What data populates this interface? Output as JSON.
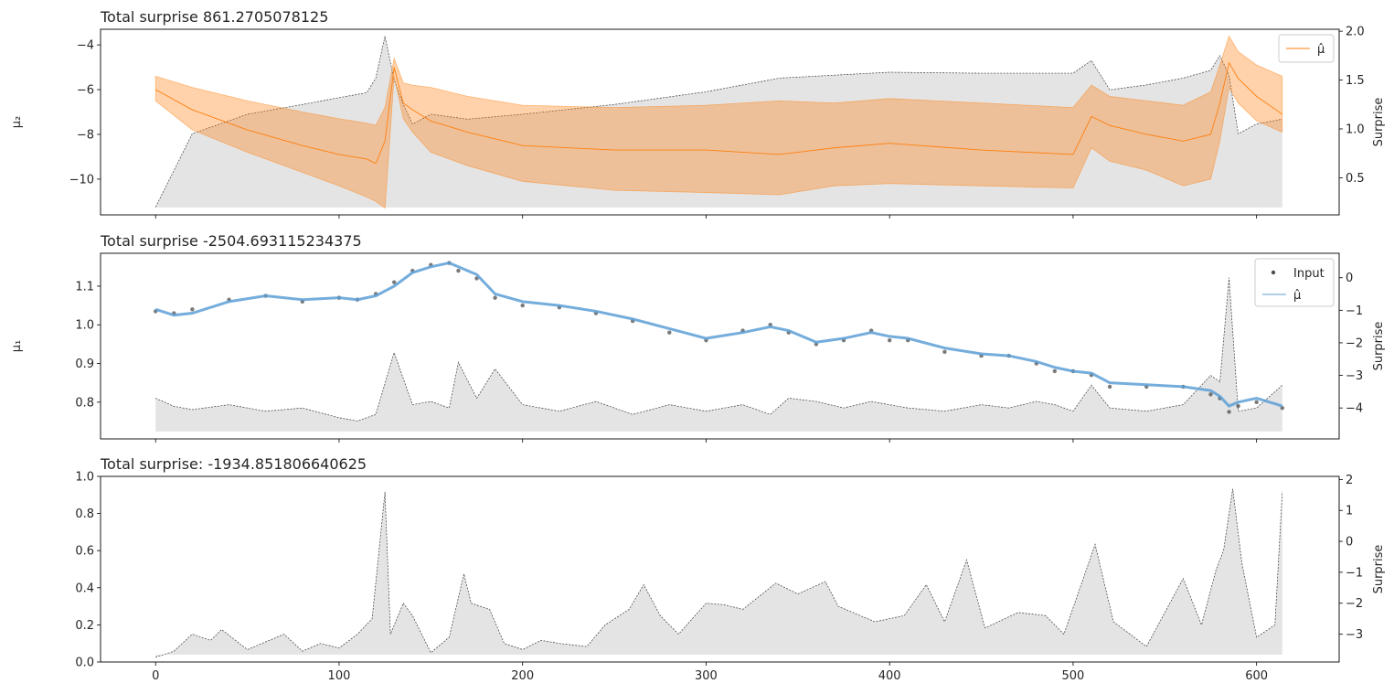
{
  "chart_data": [
    {
      "type": "area",
      "title": "Total surprise 861.2705078125",
      "ylabel": "μ₂",
      "ylabel_right": "Surprise",
      "xlim": [
        -30,
        645
      ],
      "ylim": [
        -11.6,
        -3.3
      ],
      "ylim_right": [
        0.12,
        2.02
      ],
      "yticks": [
        -10,
        -8,
        -6,
        -4
      ],
      "yticks_right": [
        0.5,
        1.0,
        1.5,
        2.0
      ],
      "ytick_labels": [
        "−10",
        "−8",
        "−6",
        "−4"
      ],
      "ytick_labels_right": [
        "0.5",
        "1.0",
        "1.5",
        "2.0"
      ],
      "legend": {
        "position": "top-right",
        "entries": [
          "μ̂"
        ]
      },
      "x": [
        0,
        20,
        50,
        80,
        100,
        115,
        120,
        125,
        130,
        135,
        140,
        150,
        170,
        200,
        250,
        300,
        340,
        370,
        400,
        450,
        500,
        510,
        520,
        540,
        560,
        575,
        580,
        585,
        590,
        600,
        614
      ],
      "series": [
        {
          "name": "μ̂",
          "color": "#ff7f0e",
          "role": "mean",
          "values": [
            -6.0,
            -6.9,
            -7.8,
            -8.5,
            -8.9,
            -9.1,
            -9.3,
            -8.3,
            -5.0,
            -6.6,
            -6.9,
            -7.4,
            -7.9,
            -8.5,
            -8.7,
            -8.7,
            -8.9,
            -8.6,
            -8.4,
            -8.7,
            -8.9,
            -7.2,
            -7.6,
            -8.0,
            -8.3,
            -8.0,
            -6.6,
            -4.8,
            -5.5,
            -6.3,
            -7.1
          ]
        },
        {
          "name": "upper",
          "role": "band_upper",
          "values": [
            -5.4,
            -5.9,
            -6.5,
            -7.0,
            -7.3,
            -7.5,
            -7.6,
            -6.8,
            -4.6,
            -5.7,
            -5.8,
            -5.9,
            -6.3,
            -6.7,
            -6.8,
            -6.7,
            -6.5,
            -6.6,
            -6.4,
            -6.6,
            -6.8,
            -5.8,
            -6.3,
            -6.5,
            -6.7,
            -6.1,
            -4.9,
            -3.6,
            -4.3,
            -4.9,
            -5.4
          ]
        },
        {
          "name": "lower",
          "role": "band_lower",
          "values": [
            -6.5,
            -7.8,
            -8.8,
            -9.7,
            -10.3,
            -10.8,
            -11.0,
            -11.3,
            -5.4,
            -7.3,
            -7.9,
            -8.8,
            -9.4,
            -10.1,
            -10.5,
            -10.6,
            -10.7,
            -10.3,
            -10.2,
            -10.3,
            -10.4,
            -8.6,
            -9.2,
            -9.6,
            -10.3,
            -10.0,
            -8.3,
            -5.9,
            -6.6,
            -7.4,
            -7.9
          ]
        },
        {
          "name": "Surprise",
          "axis": "right",
          "role": "surprise",
          "values": [
            0.2,
            0.95,
            1.15,
            1.25,
            1.32,
            1.37,
            1.52,
            1.95,
            1.5,
            1.25,
            1.05,
            1.15,
            1.1,
            1.15,
            1.25,
            1.38,
            1.52,
            1.55,
            1.58,
            1.57,
            1.57,
            1.7,
            1.4,
            1.45,
            1.52,
            1.6,
            1.75,
            1.55,
            0.95,
            1.05,
            1.1
          ]
        }
      ]
    },
    {
      "type": "line",
      "title": "Total surprise -2504.693115234375",
      "ylabel": "μ₁",
      "ylabel_right": "Surprise",
      "xlim": [
        -30,
        645
      ],
      "ylim": [
        0.705,
        1.185
      ],
      "ylim_right": [
        -4.95,
        0.75
      ],
      "yticks": [
        0.8,
        0.9,
        1.0,
        1.1
      ],
      "yticks_right": [
        -4,
        -3,
        -2,
        -1,
        0
      ],
      "ytick_labels": [
        "0.8",
        "0.9",
        "1.0",
        "1.1"
      ],
      "ytick_labels_right": [
        "−4",
        "−3",
        "−2",
        "−1",
        "0"
      ],
      "legend": {
        "position": "top-right",
        "entries": [
          "Input",
          "μ̂"
        ]
      },
      "x": [
        0,
        10,
        20,
        40,
        60,
        80,
        100,
        110,
        120,
        130,
        140,
        150,
        160,
        165,
        175,
        185,
        200,
        220,
        240,
        260,
        280,
        300,
        320,
        335,
        345,
        360,
        375,
        390,
        400,
        410,
        430,
        450,
        465,
        480,
        490,
        500,
        510,
        520,
        540,
        560,
        575,
        580,
        585,
        590,
        600,
        614
      ],
      "series": [
        {
          "name": "Input",
          "color": "#4d4d4d",
          "role": "points",
          "values": [
            1.035,
            1.03,
            1.04,
            1.065,
            1.075,
            1.06,
            1.07,
            1.065,
            1.08,
            1.11,
            1.14,
            1.155,
            1.16,
            1.14,
            1.12,
            1.07,
            1.05,
            1.045,
            1.03,
            1.01,
            0.98,
            0.96,
            0.985,
            1.0,
            0.98,
            0.95,
            0.96,
            0.985,
            0.96,
            0.96,
            0.93,
            0.92,
            0.92,
            0.9,
            0.88,
            0.88,
            0.87,
            0.84,
            0.84,
            0.84,
            0.82,
            0.81,
            0.775,
            0.79,
            0.8,
            0.785
          ]
        },
        {
          "name": "μ̂",
          "color": "#5c9fd6",
          "role": "mean",
          "values": [
            1.04,
            1.025,
            1.03,
            1.06,
            1.075,
            1.065,
            1.07,
            1.065,
            1.075,
            1.1,
            1.135,
            1.15,
            1.16,
            1.15,
            1.13,
            1.08,
            1.06,
            1.05,
            1.035,
            1.015,
            0.99,
            0.965,
            0.98,
            0.995,
            0.985,
            0.955,
            0.965,
            0.98,
            0.97,
            0.965,
            0.94,
            0.925,
            0.92,
            0.905,
            0.89,
            0.88,
            0.875,
            0.85,
            0.845,
            0.84,
            0.83,
            0.815,
            0.79,
            0.8,
            0.81,
            0.79
          ]
        },
        {
          "name": "Surprise",
          "axis": "right",
          "role": "surprise",
          "values": [
            -3.7,
            -3.95,
            -4.05,
            -3.9,
            -4.1,
            -4.0,
            -4.3,
            -4.4,
            -4.2,
            -2.3,
            -3.9,
            -3.8,
            -4.0,
            -2.6,
            -3.7,
            -2.8,
            -3.9,
            -4.1,
            -3.8,
            -4.2,
            -3.9,
            -4.1,
            -3.9,
            -4.2,
            -3.7,
            -3.8,
            -4.0,
            -3.8,
            -3.9,
            -4.0,
            -4.1,
            -3.9,
            -4.0,
            -3.8,
            -3.9,
            -4.1,
            -3.3,
            -4.0,
            -4.1,
            -3.9,
            -3.0,
            -3.2,
            0.0,
            -4.1,
            -4.0,
            -3.3
          ]
        }
      ]
    },
    {
      "type": "area",
      "title": "Total surprise: -1934.851806640625",
      "ylabel": "",
      "ylabel_right": "Surprise",
      "xlabel": "",
      "xlim": [
        -30,
        645
      ],
      "ylim": [
        0.0,
        1.0
      ],
      "ylim_right": [
        -3.9,
        2.1
      ],
      "yticks": [
        0.0,
        0.2,
        0.4,
        0.6,
        0.8,
        1.0
      ],
      "yticks_right": [
        -3,
        -2,
        -1,
        0,
        1,
        2
      ],
      "ytick_labels": [
        "0.0",
        "0.2",
        "0.4",
        "0.6",
        "0.8",
        "1.0"
      ],
      "ytick_labels_right": [
        "−3",
        "−2",
        "−1",
        "0",
        "1",
        "2"
      ],
      "xticks": [
        0,
        100,
        200,
        300,
        400,
        500,
        600
      ],
      "xtick_labels": [
        "0",
        "100",
        "200",
        "300",
        "400",
        "500",
        "600"
      ],
      "x": [
        0,
        10,
        20,
        30,
        36,
        50,
        70,
        80,
        90,
        100,
        110,
        118,
        125,
        128,
        135,
        140,
        150,
        160,
        168,
        172,
        182,
        190,
        200,
        210,
        220,
        235,
        245,
        258,
        266,
        275,
        285,
        300,
        310,
        320,
        338,
        350,
        365,
        372,
        392,
        408,
        420,
        430,
        442,
        452,
        470,
        485,
        495,
        512,
        522,
        540,
        560,
        570,
        578,
        582,
        587,
        592,
        600,
        610,
        614
      ],
      "series": [
        {
          "name": "Surprise",
          "axis": "right",
          "role": "surprise",
          "values": [
            -3.75,
            -3.55,
            -3.0,
            -3.2,
            -2.85,
            -3.5,
            -3.0,
            -3.55,
            -3.3,
            -3.45,
            -3.0,
            -2.5,
            1.6,
            -3.0,
            -2.0,
            -2.4,
            -3.6,
            -3.1,
            -1.05,
            -2.0,
            -2.2,
            -3.3,
            -3.5,
            -3.2,
            -3.3,
            -3.4,
            -2.7,
            -2.2,
            -1.4,
            -2.4,
            -3.0,
            -2.0,
            -2.05,
            -2.2,
            -1.35,
            -1.7,
            -1.3,
            -2.1,
            -2.6,
            -2.4,
            -1.4,
            -2.6,
            -0.6,
            -2.8,
            -2.3,
            -2.4,
            -3.0,
            -0.1,
            -2.6,
            -3.4,
            -1.2,
            -2.7,
            -0.9,
            -0.3,
            1.7,
            -0.7,
            -3.1,
            -2.7,
            1.6
          ]
        }
      ]
    }
  ]
}
